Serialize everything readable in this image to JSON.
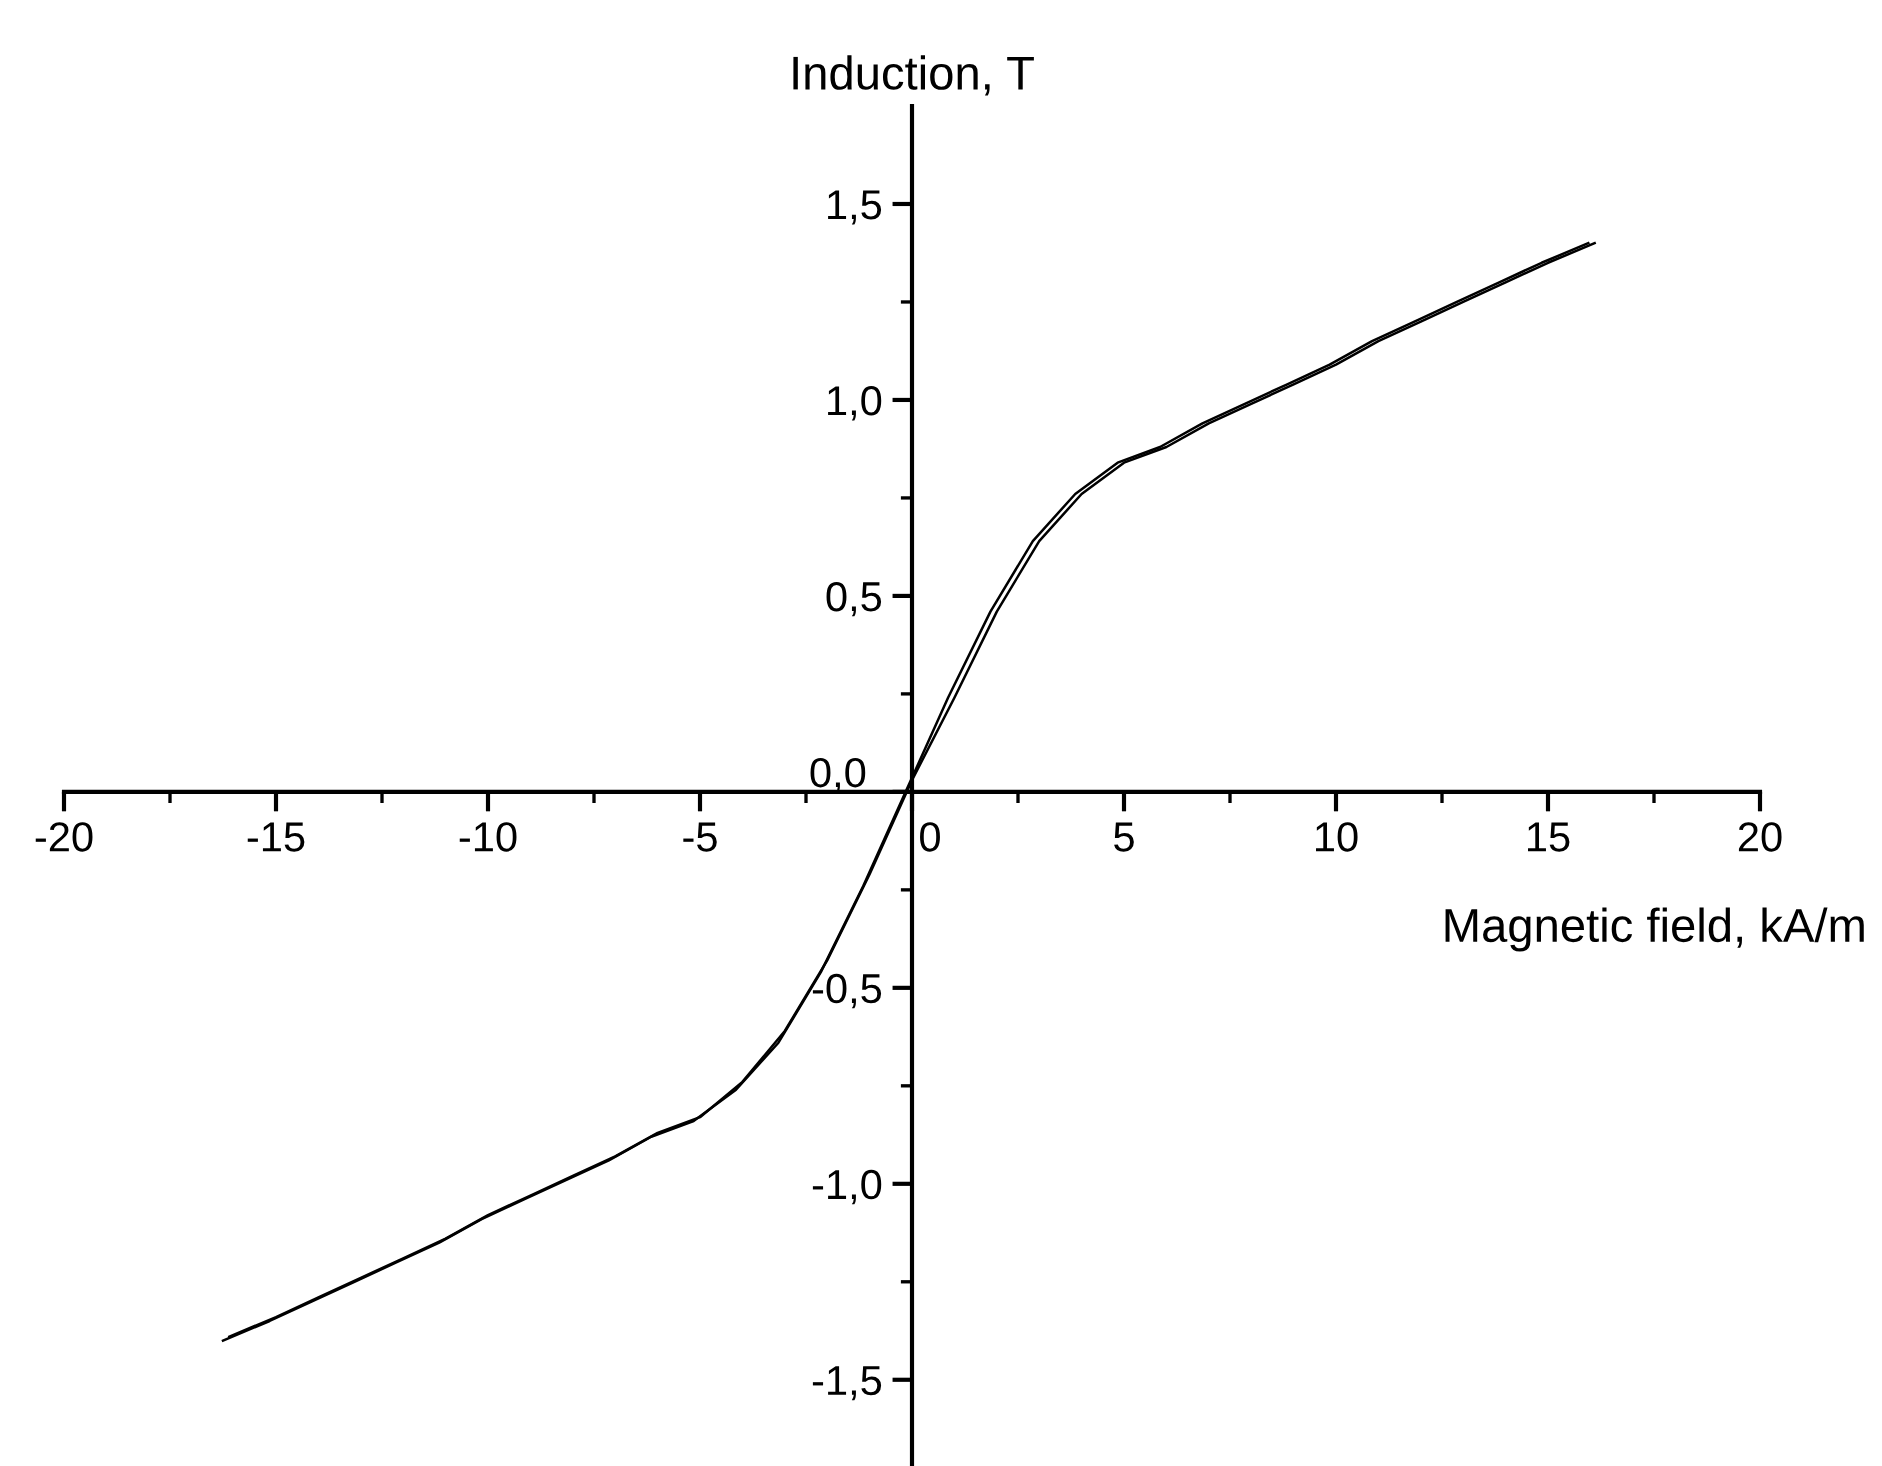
{
  "chart_data": {
    "type": "line",
    "xlabel": "Magnetic field, kA/m",
    "ylabel": "Induction, T",
    "xlim": [
      -20,
      20
    ],
    "ylim": [
      -1.72,
      1.75
    ],
    "xticks": [
      -20,
      {
        "value": -17.5,
        "label": null
      },
      -15,
      {
        "value": -12.5,
        "label": null
      },
      -10,
      {
        "value": -7.5,
        "label": null
      },
      -5,
      {
        "value": -2.5,
        "label": null
      },
      0,
      {
        "value": 2.5,
        "label": null
      },
      5,
      {
        "value": 7.5,
        "label": null
      },
      10,
      {
        "value": 12.5,
        "label": null
      },
      15,
      {
        "value": 17.5,
        "label": null
      },
      20
    ],
    "yticks": [
      {
        "value": -1.5,
        "label": "-1,5"
      },
      {
        "value": -1.25,
        "label": null
      },
      {
        "value": -1.0,
        "label": "-1,0"
      },
      {
        "value": -0.75,
        "label": null
      },
      {
        "value": -0.5,
        "label": "-0,5"
      },
      {
        "value": -0.25,
        "label": null
      },
      {
        "value": 0,
        "label": "0,0"
      },
      {
        "value": 0.25,
        "label": null
      },
      {
        "value": 0.5,
        "label": "0,5"
      },
      {
        "value": 0.75,
        "label": null
      },
      {
        "value": 1.0,
        "label": "1,0"
      },
      {
        "value": 1.25,
        "label": null
      },
      {
        "value": 1.5,
        "label": "1,5"
      }
    ],
    "grid": false,
    "marker": "none",
    "line_style": "solid",
    "series": [
      {
        "color": "#000000",
        "x": [
          -16.25,
          -15.15,
          -14.15,
          -13.15,
          -12.15,
          -11.15,
          -10.15,
          -9.15,
          -8.15,
          -7.15,
          -6.15,
          -5.15,
          -4.15,
          -3.15,
          -2.15,
          -1.15,
          -0.15,
          0.85,
          1.85,
          2.85,
          3.85,
          4.85,
          5.85,
          6.85,
          7.85,
          8.85,
          9.85,
          10.85,
          11.85,
          12.85,
          13.85,
          14.85,
          15.95
        ],
        "values": [
          -1.4,
          -1.35,
          -1.3,
          -1.25,
          -1.2,
          -1.15,
          -1.09,
          -1.04,
          -0.99,
          -0.94,
          -0.88,
          -0.84,
          -0.76,
          -0.64,
          -0.46,
          -0.24,
          0,
          0.24,
          0.46,
          0.64,
          0.76,
          0.84,
          0.88,
          0.94,
          0.99,
          1.04,
          1.09,
          1.15,
          1.2,
          1.25,
          1.3,
          1.35,
          1.4
        ]
      },
      {
        "color": "#000000",
        "x": [
          16.1,
          15.0,
          14.0,
          13.0,
          12.0,
          11.0,
          10.0,
          9.0,
          8.0,
          7.0,
          6.0,
          5.0,
          4.0,
          3.0,
          2.0,
          1.0,
          0.0,
          -1.0,
          -2.0,
          -3.0,
          -4.0,
          -5.0,
          -6.0,
          -7.0,
          -8.0,
          -9.0,
          -10.0,
          -11.0,
          -12.0,
          -13.0,
          -14.0,
          -15.0,
          -16.1
        ],
        "values": [
          1.4,
          1.35,
          1.3,
          1.25,
          1.2,
          1.15,
          1.09,
          1.04,
          0.99,
          0.94,
          0.88,
          0.84,
          0.76,
          0.64,
          0.46,
          0.24,
          0.03,
          -0.21,
          -0.43,
          -0.61,
          -0.74,
          -0.83,
          -0.87,
          -0.93,
          -0.98,
          -1.03,
          -1.08,
          -1.14,
          -1.19,
          -1.24,
          -1.29,
          -1.34,
          -1.39
        ]
      }
    ]
  }
}
